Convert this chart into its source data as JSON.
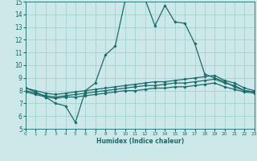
{
  "xlabel": "Humidex (Indice chaleur)",
  "xlim": [
    0,
    23
  ],
  "ylim": [
    5,
    15
  ],
  "yticks": [
    5,
    6,
    7,
    8,
    9,
    10,
    11,
    12,
    13,
    14,
    15
  ],
  "xticks": [
    0,
    1,
    2,
    3,
    4,
    5,
    6,
    7,
    8,
    9,
    10,
    11,
    12,
    13,
    14,
    15,
    16,
    17,
    18,
    19,
    20,
    21,
    22,
    23
  ],
  "bg_color": "#cce8e8",
  "grid_color": "#9ecece",
  "line_color": "#1a6b6b",
  "marker": "D",
  "marker_size": 1.8,
  "line_width": 0.9,
  "series": [
    {
      "x": [
        0,
        1,
        2,
        3,
        4,
        5,
        6,
        7,
        8,
        9,
        10,
        11,
        12,
        13,
        14,
        15,
        16,
        17,
        18,
        19,
        20,
        21,
        22,
        23
      ],
      "y": [
        8.2,
        7.9,
        7.5,
        7.0,
        6.8,
        5.5,
        8.0,
        8.6,
        10.8,
        11.5,
        15.1,
        15.1,
        15.2,
        13.1,
        14.7,
        13.4,
        13.3,
        11.7,
        9.3,
        9.0,
        8.7,
        8.3,
        8.0,
        7.9
      ]
    },
    {
      "x": [
        0,
        1,
        2,
        3,
        4,
        5,
        6,
        7,
        8,
        9,
        10,
        11,
        12,
        13,
        14,
        15,
        16,
        17,
        18,
        19,
        20,
        21,
        22,
        23
      ],
      "y": [
        8.2,
        8.0,
        7.8,
        7.7,
        7.8,
        7.9,
        8.0,
        8.1,
        8.2,
        8.3,
        8.4,
        8.5,
        8.6,
        8.7,
        8.7,
        8.8,
        8.9,
        9.0,
        9.1,
        9.2,
        8.8,
        8.6,
        8.2,
        8.0
      ]
    },
    {
      "x": [
        0,
        1,
        2,
        3,
        4,
        5,
        6,
        7,
        8,
        9,
        10,
        11,
        12,
        13,
        14,
        15,
        16,
        17,
        18,
        19,
        20,
        21,
        22,
        23
      ],
      "y": [
        8.0,
        7.8,
        7.6,
        7.5,
        7.6,
        7.7,
        7.8,
        7.9,
        8.0,
        8.1,
        8.2,
        8.3,
        8.4,
        8.4,
        8.5,
        8.6,
        8.6,
        8.7,
        8.8,
        8.9,
        8.6,
        8.4,
        8.0,
        7.9
      ]
    },
    {
      "x": [
        0,
        1,
        2,
        3,
        4,
        5,
        6,
        7,
        8,
        9,
        10,
        11,
        12,
        13,
        14,
        15,
        16,
        17,
        18,
        19,
        20,
        21,
        22,
        23
      ],
      "y": [
        7.9,
        7.7,
        7.5,
        7.4,
        7.5,
        7.5,
        7.6,
        7.7,
        7.8,
        7.9,
        8.0,
        8.0,
        8.1,
        8.2,
        8.2,
        8.3,
        8.3,
        8.4,
        8.5,
        8.6,
        8.3,
        8.1,
        7.9,
        7.8
      ]
    }
  ]
}
